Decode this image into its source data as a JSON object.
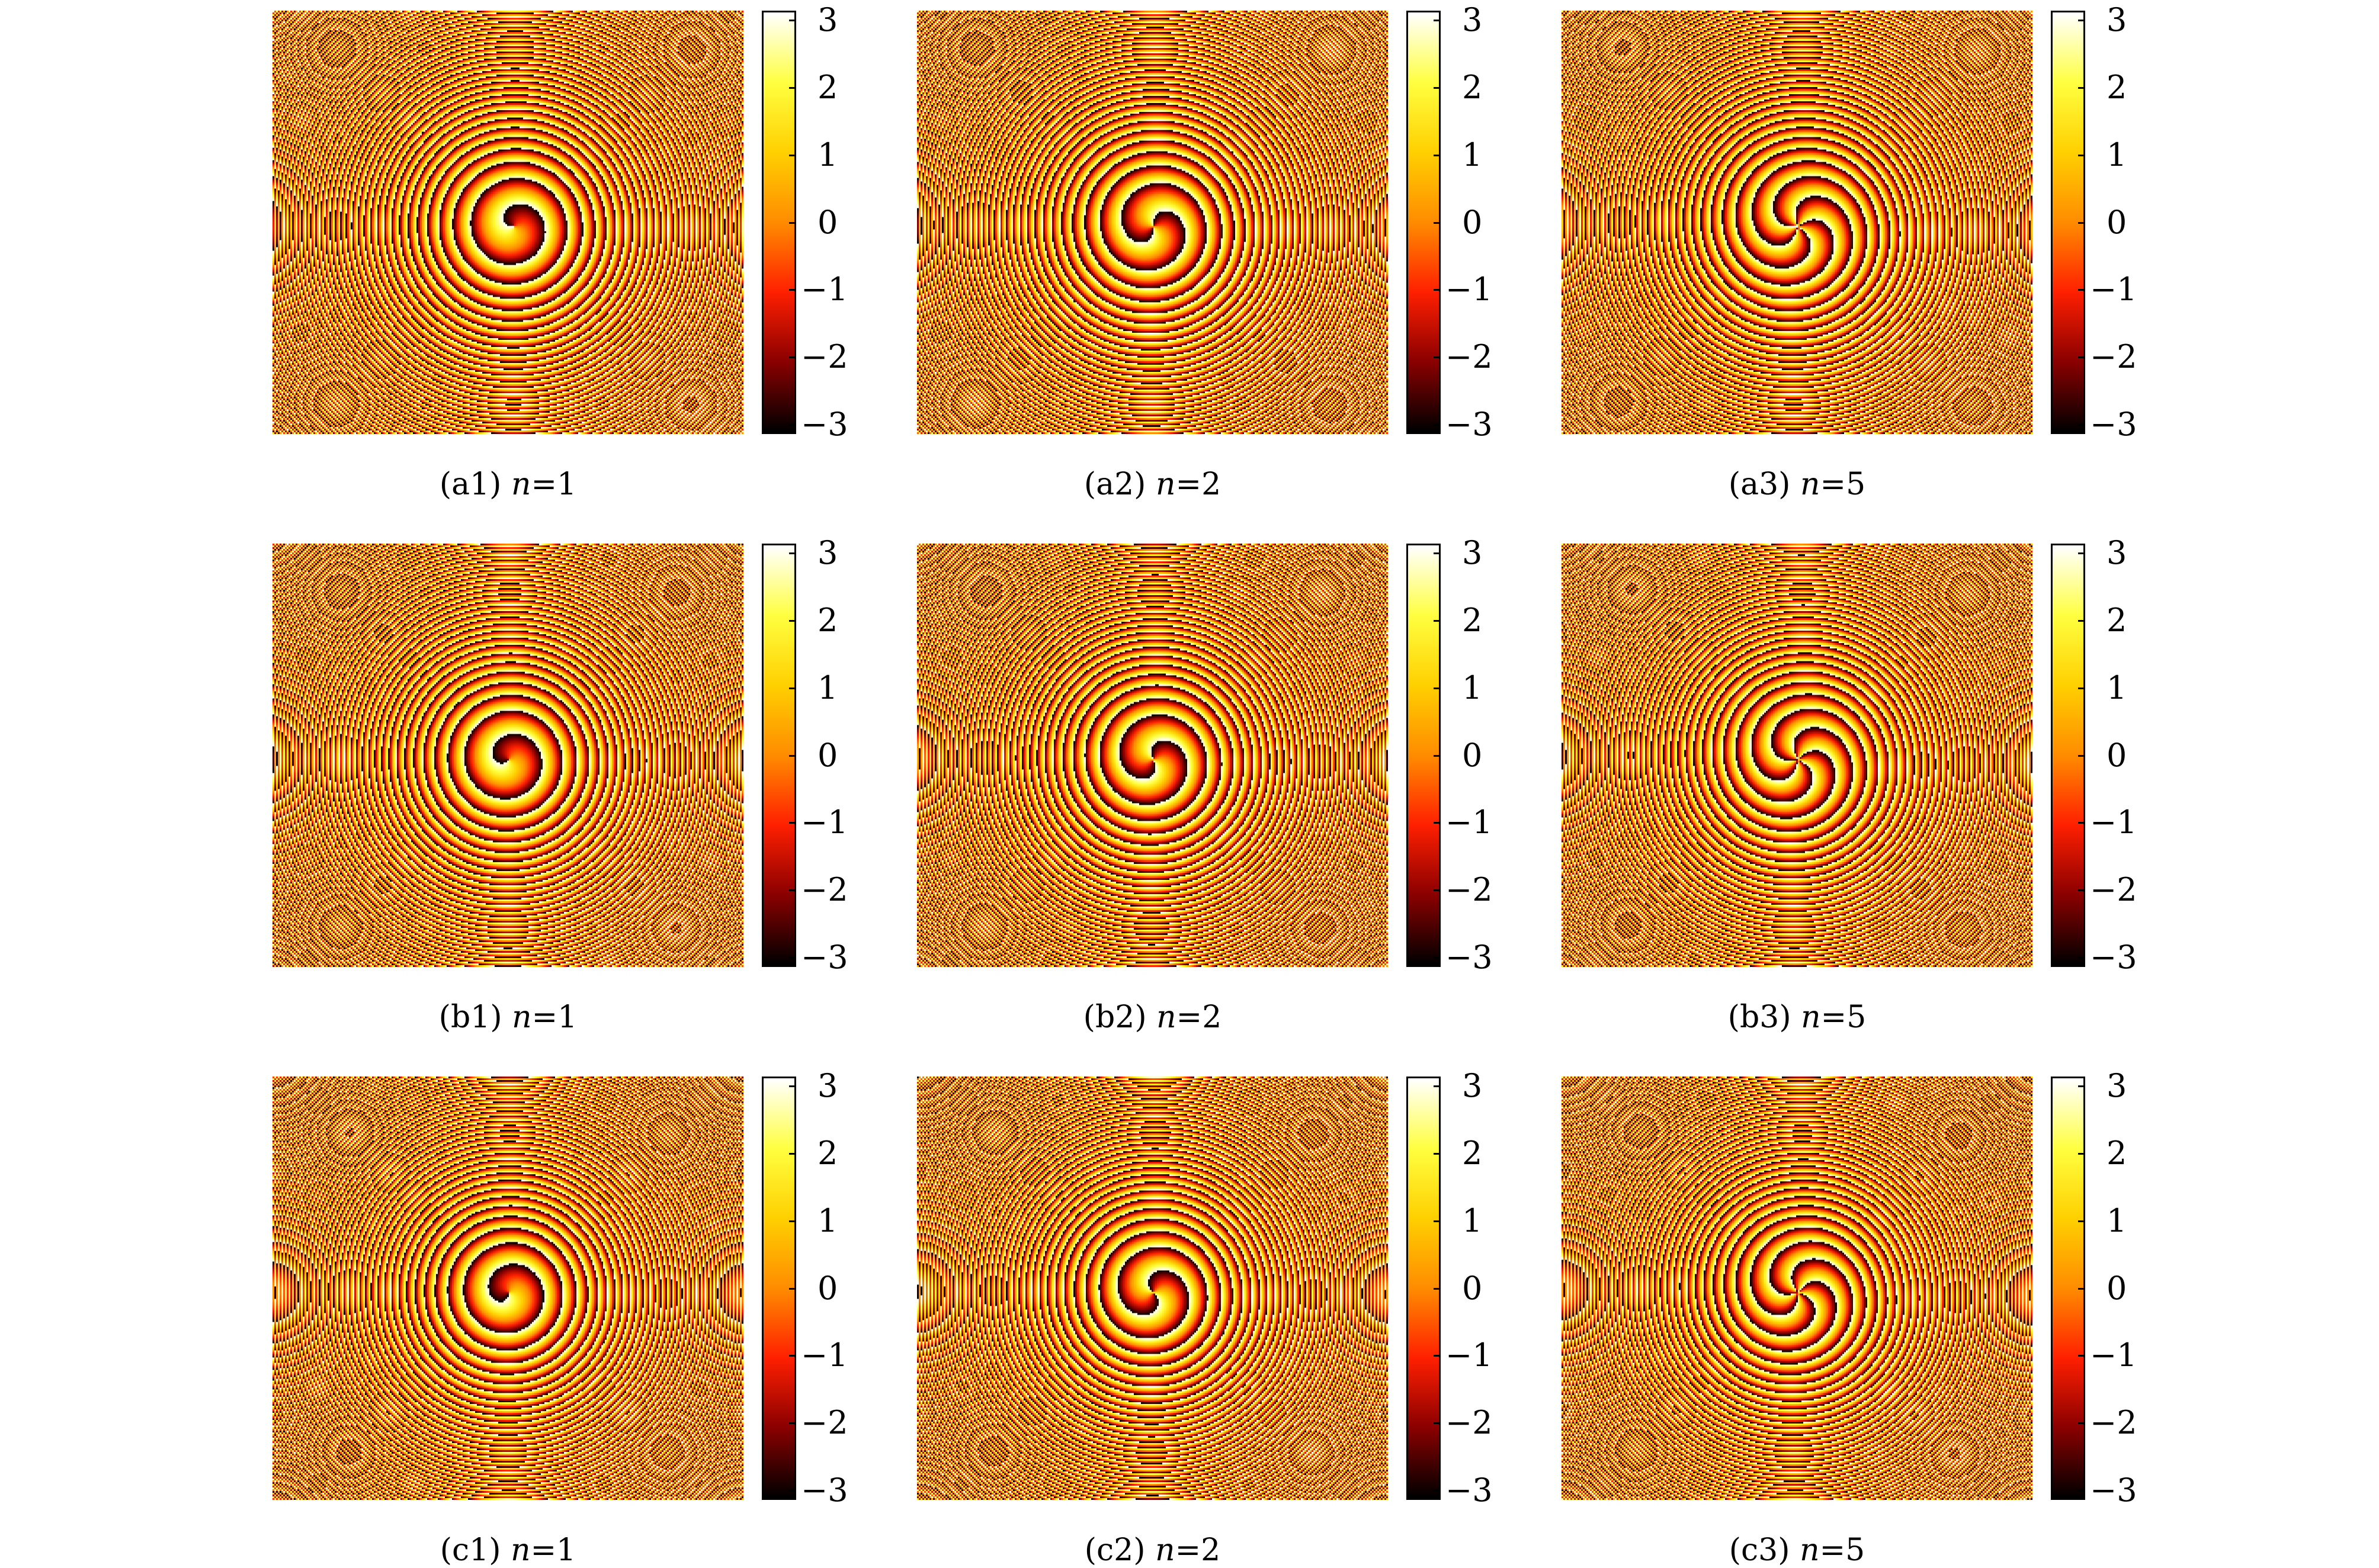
{
  "chart_data": [
    {
      "type": "heatmap",
      "label": "(a1)",
      "var": "n",
      "eq": "=",
      "n": "1",
      "colorbar": {
        "ticks": [
          "3",
          "2",
          "1",
          "0",
          "−1",
          "−2",
          "−3"
        ],
        "range": [
          -3.1416,
          3.1416
        ]
      }
    },
    {
      "type": "heatmap",
      "label": "(a2)",
      "var": "n",
      "eq": "=",
      "n": "2",
      "colorbar": {
        "ticks": [
          "3",
          "2",
          "1",
          "0",
          "−1",
          "−2",
          "−3"
        ],
        "range": [
          -3.1416,
          3.1416
        ]
      }
    },
    {
      "type": "heatmap",
      "label": "(a3)",
      "var": "n",
      "eq": "=",
      "n": "5",
      "colorbar": {
        "ticks": [
          "3",
          "2",
          "1",
          "0",
          "−1",
          "−2",
          "−3"
        ],
        "range": [
          -3.1416,
          3.1416
        ]
      }
    },
    {
      "type": "heatmap",
      "label": "(b1)",
      "var": "n",
      "eq": "=",
      "n": "1",
      "colorbar": {
        "ticks": [
          "3",
          "2",
          "1",
          "0",
          "−1",
          "−2",
          "−3"
        ],
        "range": [
          -3.1416,
          3.1416
        ]
      }
    },
    {
      "type": "heatmap",
      "label": "(b2)",
      "var": "n",
      "eq": "=",
      "n": "2",
      "colorbar": {
        "ticks": [
          "3",
          "2",
          "1",
          "0",
          "−1",
          "−2",
          "−3"
        ],
        "range": [
          -3.1416,
          3.1416
        ]
      }
    },
    {
      "type": "heatmap",
      "label": "(b3)",
      "var": "n",
      "eq": "=",
      "n": "5",
      "colorbar": {
        "ticks": [
          "3",
          "2",
          "1",
          "0",
          "−1",
          "−2",
          "−3"
        ],
        "range": [
          -3.1416,
          3.1416
        ]
      }
    },
    {
      "type": "heatmap",
      "label": "(c1)",
      "var": "n",
      "eq": "=",
      "n": "1",
      "colorbar": {
        "ticks": [
          "3",
          "2",
          "1",
          "0",
          "−1",
          "−2",
          "−3"
        ],
        "range": [
          -3.1416,
          3.1416
        ]
      }
    },
    {
      "type": "heatmap",
      "label": "(c2)",
      "var": "n",
      "eq": "=",
      "n": "2",
      "colorbar": {
        "ticks": [
          "3",
          "2",
          "1",
          "0",
          "−1",
          "−2",
          "−3"
        ],
        "range": [
          -3.1416,
          3.1416
        ]
      }
    },
    {
      "type": "heatmap",
      "label": "(c3)",
      "var": "n",
      "eq": "=",
      "n": "5",
      "colorbar": {
        "ticks": [
          "3",
          "2",
          "1",
          "0",
          "−1",
          "−2",
          "−3"
        ],
        "range": [
          -3.1416,
          3.1416
        ]
      }
    }
  ],
  "colormap": [
    "#000000",
    "#8b0000",
    "#ff2000",
    "#ff8c00",
    "#ffd000",
    "#ffff40",
    "#ffffff"
  ]
}
